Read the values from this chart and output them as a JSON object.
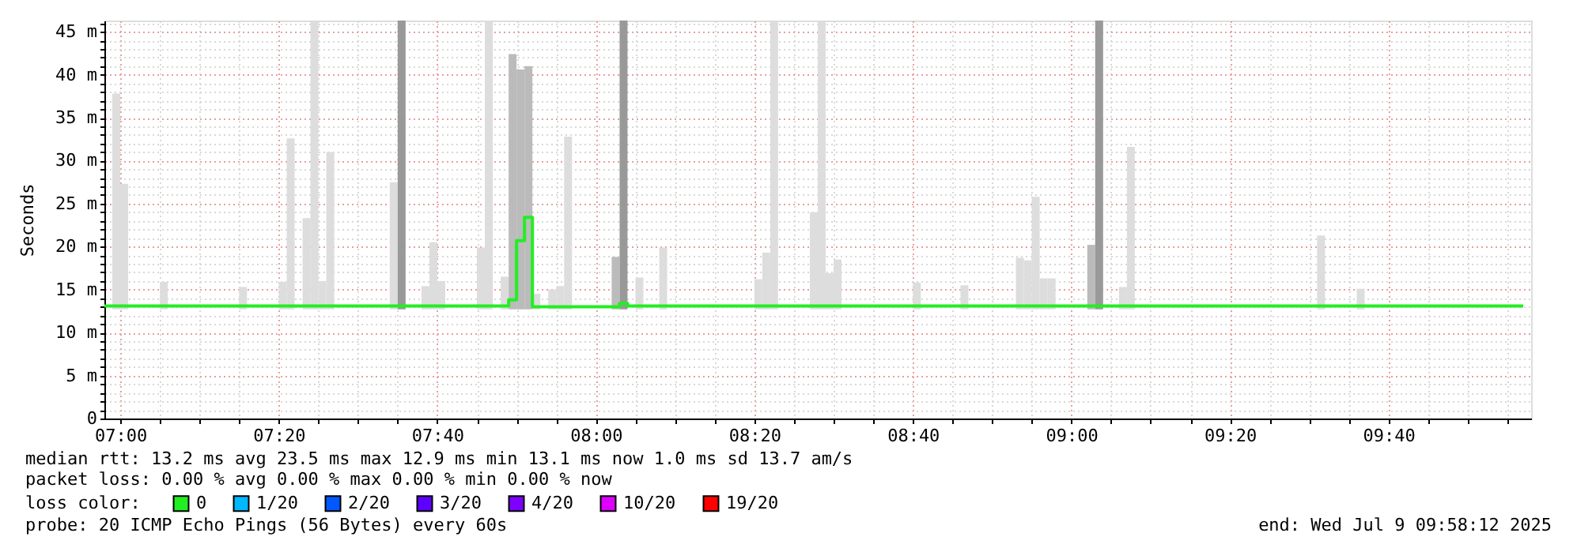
{
  "chart_data": {
    "type": "bar",
    "ylabel": "Seconds",
    "legend_title": "loss color:",
    "legend": "bottom",
    "grid": true,
    "xlim": [
      "2025-07-09T06:58",
      "2025-07-09T09:58"
    ],
    "xticks": [
      {
        "value": "2025-07-09T07:00",
        "label": "07:00"
      },
      {
        "value": "2025-07-09T07:05",
        "label": null
      },
      {
        "value": "2025-07-09T07:10",
        "label": null
      },
      {
        "value": "2025-07-09T07:15",
        "label": null
      },
      {
        "value": "2025-07-09T07:20",
        "label": "07:20"
      },
      {
        "value": "2025-07-09T07:25",
        "label": null
      },
      {
        "value": "2025-07-09T07:30",
        "label": null
      },
      {
        "value": "2025-07-09T07:35",
        "label": null
      },
      {
        "value": "2025-07-09T07:40",
        "label": "07:40"
      },
      {
        "value": "2025-07-09T07:45",
        "label": null
      },
      {
        "value": "2025-07-09T07:50",
        "label": null
      },
      {
        "value": "2025-07-09T07:55",
        "label": null
      },
      {
        "value": "2025-07-09T08:00",
        "label": "08:00"
      },
      {
        "value": "2025-07-09T08:05",
        "label": null
      },
      {
        "value": "2025-07-09T08:10",
        "label": null
      },
      {
        "value": "2025-07-09T08:15",
        "label": null
      },
      {
        "value": "2025-07-09T08:20",
        "label": "08:20"
      },
      {
        "value": "2025-07-09T08:25",
        "label": null
      },
      {
        "value": "2025-07-09T08:30",
        "label": null
      },
      {
        "value": "2025-07-09T08:35",
        "label": null
      },
      {
        "value": "2025-07-09T08:40",
        "label": "08:40"
      },
      {
        "value": "2025-07-09T08:45",
        "label": null
      },
      {
        "value": "2025-07-09T08:50",
        "label": null
      },
      {
        "value": "2025-07-09T08:55",
        "label": null
      },
      {
        "value": "2025-07-09T09:00",
        "label": "09:00"
      },
      {
        "value": "2025-07-09T09:05",
        "label": null
      },
      {
        "value": "2025-07-09T09:10",
        "label": null
      },
      {
        "value": "2025-07-09T09:15",
        "label": null
      },
      {
        "value": "2025-07-09T09:20",
        "label": "09:20"
      },
      {
        "value": "2025-07-09T09:25",
        "label": null
      },
      {
        "value": "2025-07-09T09:30",
        "label": null
      },
      {
        "value": "2025-07-09T09:35",
        "label": null
      },
      {
        "value": "2025-07-09T09:40",
        "label": "09:40"
      },
      {
        "value": "2025-07-09T09:45",
        "label": null
      },
      {
        "value": "2025-07-09T09:50",
        "label": null
      },
      {
        "value": "2025-07-09T09:55",
        "label": null
      }
    ],
    "ylim": [
      0,
      46.3
    ],
    "yticks": [
      0,
      {
        "value": 1,
        "label": null
      },
      {
        "value": 2,
        "label": null
      },
      {
        "value": 3,
        "label": null
      },
      {
        "value": 4,
        "label": null
      },
      {
        "value": 5,
        "label": "5 m"
      },
      {
        "value": 6,
        "label": null
      },
      {
        "value": 7,
        "label": null
      },
      {
        "value": 8,
        "label": null
      },
      {
        "value": 9,
        "label": null
      },
      {
        "value": 10,
        "label": "10 m"
      },
      {
        "value": 11,
        "label": null
      },
      {
        "value": 12,
        "label": null
      },
      {
        "value": 13,
        "label": null
      },
      {
        "value": 14,
        "label": null
      },
      {
        "value": 15,
        "label": "15 m"
      },
      {
        "value": 16,
        "label": null
      },
      {
        "value": 17,
        "label": null
      },
      {
        "value": 18,
        "label": null
      },
      {
        "value": 19,
        "label": null
      },
      {
        "value": 20,
        "label": "20 m"
      },
      {
        "value": 21,
        "label": null
      },
      {
        "value": 22,
        "label": null
      },
      {
        "value": 23,
        "label": null
      },
      {
        "value": 24,
        "label": null
      },
      {
        "value": 25,
        "label": "25 m"
      },
      {
        "value": 26,
        "label": null
      },
      {
        "value": 27,
        "label": null
      },
      {
        "value": 28,
        "label": null
      },
      {
        "value": 29,
        "label": null
      },
      {
        "value": 30,
        "label": "30 m"
      },
      {
        "value": 31,
        "label": null
      },
      {
        "value": 32,
        "label": null
      },
      {
        "value": 33,
        "label": null
      },
      {
        "value": 34,
        "label": null
      },
      {
        "value": 35,
        "label": "35 m"
      },
      {
        "value": 36,
        "label": null
      },
      {
        "value": 37,
        "label": null
      },
      {
        "value": 38,
        "label": null
      },
      {
        "value": 39,
        "label": null
      },
      {
        "value": 40,
        "label": "40 m"
      },
      {
        "value": 41,
        "label": null
      },
      {
        "value": 42,
        "label": null
      },
      {
        "value": 43,
        "label": null
      },
      {
        "value": 44,
        "label": null
      },
      {
        "value": 45,
        "label": "45 m"
      },
      {
        "value": 46,
        "label": null
      }
    ],
    "series": [
      {
        "x": [
          "2025-07-09T06:59",
          "2025-07-09T07:00",
          "2025-07-09T07:05",
          "2025-07-09T07:15",
          "2025-07-09T07:20",
          "2025-07-09T07:21",
          "2025-07-09T07:23",
          "2025-07-09T07:24",
          "2025-07-09T07:25",
          "2025-07-09T07:26",
          "2025-07-09T07:34",
          "2025-07-09T07:35",
          "2025-07-09T07:38",
          "2025-07-09T07:39",
          "2025-07-09T07:40",
          "2025-07-09T07:45",
          "2025-07-09T07:46",
          "2025-07-09T07:48",
          "2025-07-09T07:49",
          "2025-07-09T07:50",
          "2025-07-09T07:51",
          "2025-07-09T07:52",
          "2025-07-09T07:54",
          "2025-07-09T07:55",
          "2025-07-09T07:56",
          "2025-07-09T08:02",
          "2025-07-09T08:03",
          "2025-07-09T08:05",
          "2025-07-09T08:08",
          "2025-07-09T08:20",
          "2025-07-09T08:21",
          "2025-07-09T08:22",
          "2025-07-09T08:27",
          "2025-07-09T08:28",
          "2025-07-09T08:29",
          "2025-07-09T08:30",
          "2025-07-09T08:40",
          "2025-07-09T08:46",
          "2025-07-09T08:53",
          "2025-07-09T08:54",
          "2025-07-09T08:55",
          "2025-07-09T08:56",
          "2025-07-09T08:57",
          "2025-07-09T09:02",
          "2025-07-09T09:03",
          "2025-07-09T09:06",
          "2025-07-09T09:07",
          "2025-07-09T09:31",
          "2025-07-09T09:36"
        ],
        "base": [
          12.7,
          12.7,
          12.7,
          12.7,
          12.7,
          12.7,
          12.7,
          12.7,
          12.7,
          12.7,
          12.7,
          12.7,
          12.7,
          12.7,
          12.7,
          12.7,
          12.7,
          12.7,
          12.7,
          12.7,
          12.7,
          12.7,
          12.7,
          12.7,
          12.7,
          12.7,
          12.7,
          12.7,
          12.7,
          12.7,
          12.7,
          12.7,
          12.7,
          12.7,
          12.7,
          12.7,
          12.7,
          12.7,
          12.7,
          12.7,
          12.7,
          12.7,
          12.7,
          12.7,
          12.7,
          12.7,
          12.7,
          12.7,
          12.7
        ],
        "values": [
          25.1,
          14.6,
          3.2,
          2.6,
          3.2,
          19.9,
          10.6,
          33.6,
          3.3,
          18.3,
          14.8,
          33.6,
          2.7,
          7.8,
          3.3,
          7.2,
          33.6,
          3.8,
          29.7,
          27.9,
          28.3,
          1.8,
          2.3,
          2.7,
          20.1,
          6.1,
          33.6,
          3.7,
          7.2,
          3.5,
          6.6,
          33.6,
          11.3,
          33.6,
          4.2,
          5.8,
          3.1,
          2.8,
          6.0,
          5.7,
          13.1,
          3.6,
          3.6,
          7.5,
          33.6,
          2.6,
          18.9,
          8.6,
          2.4
        ],
        "colors": [
          "#dddddd",
          "#dddddd",
          "#dddddd",
          "#dddddd",
          "#dddddd",
          "#dddddd",
          "#dddddd",
          "#dddddd",
          "#dddddd",
          "#dddddd",
          "#dddddd",
          "#999999",
          "#dddddd",
          "#dddddd",
          "#dddddd",
          "#dddddd",
          "#dddddd",
          "#dddddd",
          "#bbbbbb",
          "#bbbbbb",
          "#bbbbbb",
          "#dddddd",
          "#dddddd",
          "#dddddd",
          "#dddddd",
          "#bbbbbb",
          "#999999",
          "#dddddd",
          "#dddddd",
          "#dddddd",
          "#dddddd",
          "#dddddd",
          "#dddddd",
          "#dddddd",
          "#dddddd",
          "#dddddd",
          "#dddddd",
          "#dddddd",
          "#dddddd",
          "#dddddd",
          "#dddddd",
          "#dddddd",
          "#dddddd",
          "#bbbbbb",
          "#999999",
          "#dddddd",
          "#dddddd",
          "#dddddd",
          "#dddddd"
        ]
      },
      {
        "name": "0",
        "type": "step",
        "color": "#22ee22",
        "x": [
          "2025-07-09T06:58",
          "2025-07-09T07:49",
          "2025-07-09T07:50",
          "2025-07-09T07:51",
          "2025-07-09T07:52",
          "2025-07-09T08:03",
          "2025-07-09T08:04",
          "2025-07-09T09:57"
        ],
        "values": [
          13.1,
          13.8,
          20.7,
          23.4,
          13.0,
          13.4,
          13.1,
          13.1
        ]
      },
      {
        "name": "1/20",
        "color": "#00b8ff"
      },
      {
        "name": "2/20",
        "color": "#0059ff"
      },
      {
        "name": "3/20",
        "color": "#5e00ff"
      },
      {
        "name": "4/20",
        "color": "#7e00ff"
      },
      {
        "name": "10/20",
        "color": "#dd00ff"
      },
      {
        "name": "19/20",
        "color": "#ff0000"
      }
    ],
    "annotations": [
      "median rtt:  13.2 ms avg  23.5 ms max  12.9 ms min  13.1 ms now  1.0 ms sd  13.7   am/s",
      "packet loss: 0.00 % avg  0.00 % max  0.00 % min  0.00 % now",
      "probe:       20 ICMP Echo Pings (56 Bytes) every 60s",
      "end: Wed Jul  9 09:58:12 2025"
    ]
  }
}
